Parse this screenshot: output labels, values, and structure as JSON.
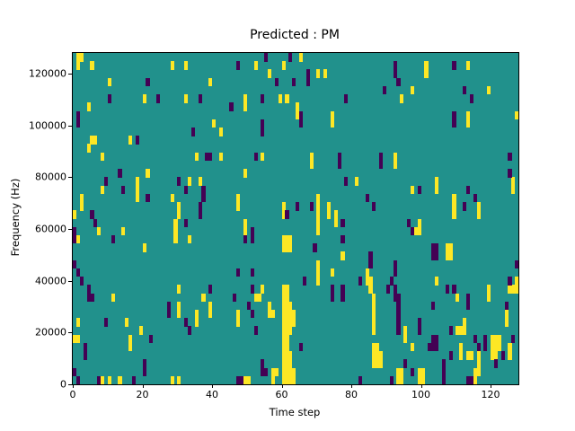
{
  "chart_data": {
    "type": "heatmap",
    "title": "Predicted : PM",
    "xlabel": "Time step",
    "ylabel": "Frequency (Hz)",
    "xlim": [
      0,
      128
    ],
    "ylim": [
      0,
      128000
    ],
    "x_ticks": [
      0,
      20,
      40,
      60,
      80,
      100,
      120
    ],
    "y_ticks": [
      0,
      20000,
      40000,
      60000,
      80000,
      100000,
      120000
    ],
    "grid": {
      "cols": 128,
      "rows": 40,
      "hz_per_row": 3200,
      "row_origin": "top",
      "gridlines": false
    },
    "legend": null,
    "colormap": "viridis",
    "colors": {
      "background_mid": "#21918c",
      "high": "#fde725",
      "low": "#440154",
      "figure_bg": "#ffffff",
      "axis": "#000000"
    },
    "cells_high": [
      [
        1,
        0
      ],
      [
        2,
        0
      ],
      [
        1,
        1
      ],
      [
        5,
        1
      ],
      [
        28,
        1
      ],
      [
        32,
        1
      ],
      [
        52,
        1
      ],
      [
        60,
        1
      ],
      [
        56,
        2
      ],
      [
        10,
        3
      ],
      [
        39,
        3
      ],
      [
        20,
        5
      ],
      [
        32,
        5
      ],
      [
        49,
        5
      ],
      [
        59,
        5
      ],
      [
        61,
        5
      ],
      [
        4,
        6
      ],
      [
        49,
        6
      ],
      [
        40,
        8
      ],
      [
        42,
        9
      ],
      [
        5,
        10
      ],
      [
        6,
        10
      ],
      [
        16,
        10
      ],
      [
        4,
        11
      ],
      [
        8,
        12
      ],
      [
        35,
        12
      ],
      [
        42,
        12
      ],
      [
        54,
        12
      ],
      [
        65,
        0
      ],
      [
        70,
        2
      ],
      [
        72,
        2
      ],
      [
        101,
        1
      ],
      [
        101,
        2
      ],
      [
        113,
        1
      ],
      [
        97,
        4
      ],
      [
        119,
        4
      ],
      [
        94,
        5
      ],
      [
        64,
        6
      ],
      [
        64,
        7
      ],
      [
        74,
        7
      ],
      [
        74,
        8
      ],
      [
        113,
        7
      ],
      [
        113,
        8
      ],
      [
        127,
        7
      ],
      [
        68,
        12
      ],
      [
        68,
        13
      ],
      [
        92,
        12
      ],
      [
        92,
        13
      ],
      [
        21,
        14
      ],
      [
        49,
        14
      ],
      [
        18,
        15
      ],
      [
        33,
        15
      ],
      [
        36,
        15
      ],
      [
        8,
        16
      ],
      [
        18,
        16
      ],
      [
        2,
        17
      ],
      [
        18,
        17
      ],
      [
        28,
        17
      ],
      [
        47,
        17
      ],
      [
        2,
        18
      ],
      [
        30,
        18
      ],
      [
        47,
        18
      ],
      [
        30,
        19
      ],
      [
        0,
        19
      ],
      [
        60,
        18
      ],
      [
        60,
        19
      ],
      [
        49,
        20
      ],
      [
        29,
        20
      ],
      [
        7,
        21
      ],
      [
        14,
        21
      ],
      [
        29,
        21
      ],
      [
        49,
        21
      ],
      [
        1,
        22
      ],
      [
        29,
        22
      ],
      [
        33,
        22
      ],
      [
        60,
        22
      ],
      [
        61,
        22
      ],
      [
        62,
        22
      ],
      [
        60,
        23
      ],
      [
        61,
        23
      ],
      [
        62,
        23
      ],
      [
        20,
        23
      ],
      [
        81,
        15
      ],
      [
        104,
        15
      ],
      [
        126,
        15
      ],
      [
        97,
        16
      ],
      [
        104,
        16
      ],
      [
        126,
        16
      ],
      [
        70,
        17
      ],
      [
        109,
        17
      ],
      [
        70,
        18
      ],
      [
        73,
        18
      ],
      [
        109,
        18
      ],
      [
        116,
        18
      ],
      [
        70,
        19
      ],
      [
        73,
        19
      ],
      [
        75,
        19
      ],
      [
        109,
        19
      ],
      [
        116,
        19
      ],
      [
        70,
        20
      ],
      [
        75,
        20
      ],
      [
        99,
        20
      ],
      [
        70,
        21
      ],
      [
        98,
        21
      ],
      [
        99,
        21
      ],
      [
        107,
        23
      ],
      [
        108,
        23
      ],
      [
        107,
        24
      ],
      [
        108,
        24
      ],
      [
        77,
        24
      ],
      [
        70,
        25
      ],
      [
        70,
        26
      ],
      [
        74,
        26
      ],
      [
        84,
        26
      ],
      [
        11,
        29
      ],
      [
        30,
        28
      ],
      [
        54,
        28
      ],
      [
        37,
        29
      ],
      [
        52,
        29
      ],
      [
        53,
        29
      ],
      [
        30,
        30
      ],
      [
        39,
        30
      ],
      [
        56,
        30
      ],
      [
        30,
        31
      ],
      [
        35,
        31
      ],
      [
        39,
        31
      ],
      [
        47,
        31
      ],
      [
        56,
        31
      ],
      [
        57,
        31
      ],
      [
        1,
        32
      ],
      [
        15,
        32
      ],
      [
        35,
        32
      ],
      [
        47,
        32
      ],
      [
        19,
        33
      ],
      [
        0,
        34
      ],
      [
        1,
        34
      ],
      [
        16,
        34
      ],
      [
        16,
        35
      ],
      [
        8,
        39
      ],
      [
        10,
        39
      ],
      [
        13,
        39
      ],
      [
        28,
        39
      ],
      [
        30,
        39
      ],
      [
        49,
        39
      ],
      [
        50,
        39
      ],
      [
        57,
        38
      ],
      [
        57,
        39
      ],
      [
        58,
        38
      ],
      [
        60,
        28
      ],
      [
        61,
        28
      ],
      [
        60,
        29
      ],
      [
        61,
        29
      ],
      [
        60,
        30
      ],
      [
        61,
        30
      ],
      [
        62,
        30
      ],
      [
        60,
        31
      ],
      [
        61,
        31
      ],
      [
        62,
        31
      ],
      [
        63,
        31
      ],
      [
        60,
        32
      ],
      [
        61,
        32
      ],
      [
        62,
        32
      ],
      [
        63,
        32
      ],
      [
        60,
        33
      ],
      [
        61,
        33
      ],
      [
        62,
        33
      ],
      [
        60,
        34
      ],
      [
        61,
        34
      ],
      [
        60,
        35
      ],
      [
        61,
        35
      ],
      [
        60,
        36
      ],
      [
        61,
        36
      ],
      [
        62,
        36
      ],
      [
        60,
        37
      ],
      [
        61,
        37
      ],
      [
        62,
        37
      ],
      [
        60,
        38
      ],
      [
        61,
        38
      ],
      [
        62,
        38
      ],
      [
        63,
        38
      ],
      [
        60,
        39
      ],
      [
        61,
        39
      ],
      [
        62,
        39
      ],
      [
        63,
        39
      ],
      [
        70,
        27
      ],
      [
        84,
        27
      ],
      [
        85,
        27
      ],
      [
        104,
        27
      ],
      [
        127,
        27
      ],
      [
        85,
        28
      ],
      [
        119,
        28
      ],
      [
        125,
        28
      ],
      [
        126,
        28
      ],
      [
        127,
        28
      ],
      [
        86,
        29
      ],
      [
        110,
        29
      ],
      [
        119,
        29
      ],
      [
        86,
        30
      ],
      [
        86,
        31
      ],
      [
        124,
        31
      ],
      [
        86,
        32
      ],
      [
        112,
        32
      ],
      [
        124,
        32
      ],
      [
        86,
        33
      ],
      [
        95,
        33
      ],
      [
        110,
        33
      ],
      [
        111,
        33
      ],
      [
        112,
        33
      ],
      [
        95,
        34
      ],
      [
        120,
        34
      ],
      [
        121,
        34
      ],
      [
        122,
        34
      ],
      [
        86,
        35
      ],
      [
        87,
        35
      ],
      [
        97,
        35
      ],
      [
        111,
        35
      ],
      [
        120,
        35
      ],
      [
        121,
        35
      ],
      [
        122,
        35
      ],
      [
        125,
        35
      ],
      [
        86,
        36
      ],
      [
        87,
        36
      ],
      [
        88,
        36
      ],
      [
        111,
        36
      ],
      [
        113,
        36
      ],
      [
        114,
        36
      ],
      [
        116,
        36
      ],
      [
        120,
        36
      ],
      [
        121,
        36
      ],
      [
        125,
        36
      ],
      [
        86,
        37
      ],
      [
        87,
        37
      ],
      [
        88,
        37
      ],
      [
        116,
        37
      ],
      [
        93,
        38
      ],
      [
        94,
        38
      ],
      [
        99,
        38
      ],
      [
        100,
        38
      ],
      [
        115,
        38
      ],
      [
        116,
        38
      ],
      [
        93,
        39
      ],
      [
        94,
        39
      ],
      [
        99,
        39
      ],
      [
        100,
        39
      ],
      [
        115,
        39
      ]
    ],
    "cells_low": [
      [
        55,
        0
      ],
      [
        62,
        0
      ],
      [
        47,
        1
      ],
      [
        21,
        3
      ],
      [
        58,
        3
      ],
      [
        63,
        3
      ],
      [
        10,
        5
      ],
      [
        24,
        5
      ],
      [
        36,
        5
      ],
      [
        54,
        5
      ],
      [
        45,
        6
      ],
      [
        1,
        7
      ],
      [
        1,
        8
      ],
      [
        54,
        8
      ],
      [
        54,
        9
      ],
      [
        34,
        9
      ],
      [
        18,
        10
      ],
      [
        38,
        12
      ],
      [
        39,
        12
      ],
      [
        52,
        12
      ],
      [
        92,
        1
      ],
      [
        92,
        2
      ],
      [
        109,
        1
      ],
      [
        67,
        2
      ],
      [
        67,
        3
      ],
      [
        93,
        3
      ],
      [
        89,
        4
      ],
      [
        112,
        4
      ],
      [
        78,
        5
      ],
      [
        114,
        5
      ],
      [
        65,
        7
      ],
      [
        65,
        8
      ],
      [
        109,
        7
      ],
      [
        109,
        8
      ],
      [
        76,
        12
      ],
      [
        76,
        13
      ],
      [
        88,
        12
      ],
      [
        88,
        13
      ],
      [
        125,
        12
      ],
      [
        13,
        14
      ],
      [
        9,
        15
      ],
      [
        30,
        15
      ],
      [
        14,
        16
      ],
      [
        32,
        16
      ],
      [
        37,
        16
      ],
      [
        21,
        17
      ],
      [
        37,
        17
      ],
      [
        36,
        18
      ],
      [
        5,
        19
      ],
      [
        36,
        19
      ],
      [
        61,
        19
      ],
      [
        6,
        20
      ],
      [
        32,
        20
      ],
      [
        0,
        21
      ],
      [
        51,
        21
      ],
      [
        0,
        22
      ],
      [
        11,
        22
      ],
      [
        49,
        22
      ],
      [
        51,
        22
      ],
      [
        0,
        25
      ],
      [
        1,
        26
      ],
      [
        47,
        26
      ],
      [
        51,
        26
      ],
      [
        125,
        14
      ],
      [
        78,
        15
      ],
      [
        99,
        16
      ],
      [
        113,
        16
      ],
      [
        84,
        17
      ],
      [
        115,
        17
      ],
      [
        64,
        18
      ],
      [
        68,
        18
      ],
      [
        86,
        18
      ],
      [
        112,
        18
      ],
      [
        77,
        20
      ],
      [
        96,
        20
      ],
      [
        97,
        21
      ],
      [
        77,
        22
      ],
      [
        69,
        23
      ],
      [
        103,
        23
      ],
      [
        104,
        23
      ],
      [
        103,
        24
      ],
      [
        104,
        24
      ],
      [
        85,
        24
      ],
      [
        85,
        25
      ],
      [
        92,
        25
      ],
      [
        92,
        26
      ],
      [
        127,
        25
      ],
      [
        2,
        27
      ],
      [
        4,
        28
      ],
      [
        39,
        28
      ],
      [
        51,
        28
      ],
      [
        4,
        29
      ],
      [
        5,
        29
      ],
      [
        46,
        29
      ],
      [
        27,
        30
      ],
      [
        50,
        30
      ],
      [
        27,
        31
      ],
      [
        51,
        31
      ],
      [
        9,
        32
      ],
      [
        32,
        32
      ],
      [
        33,
        33
      ],
      [
        52,
        33
      ],
      [
        22,
        34
      ],
      [
        3,
        35
      ],
      [
        3,
        36
      ],
      [
        20,
        37
      ],
      [
        54,
        37
      ],
      [
        0,
        38
      ],
      [
        20,
        38
      ],
      [
        54,
        38
      ],
      [
        55,
        38
      ],
      [
        1,
        39
      ],
      [
        7,
        39
      ],
      [
        17,
        39
      ],
      [
        47,
        39
      ],
      [
        48,
        39
      ],
      [
        66,
        27
      ],
      [
        82,
        27
      ],
      [
        91,
        27
      ],
      [
        125,
        27
      ],
      [
        74,
        28
      ],
      [
        77,
        28
      ],
      [
        90,
        28
      ],
      [
        92,
        28
      ],
      [
        107,
        28
      ],
      [
        109,
        28
      ],
      [
        74,
        29
      ],
      [
        77,
        29
      ],
      [
        92,
        29
      ],
      [
        93,
        29
      ],
      [
        113,
        29
      ],
      [
        93,
        30
      ],
      [
        103,
        30
      ],
      [
        113,
        30
      ],
      [
        124,
        30
      ],
      [
        93,
        31
      ],
      [
        93,
        32
      ],
      [
        99,
        32
      ],
      [
        93,
        33
      ],
      [
        99,
        33
      ],
      [
        108,
        33
      ],
      [
        103,
        34
      ],
      [
        104,
        34
      ],
      [
        115,
        34
      ],
      [
        118,
        34
      ],
      [
        126,
        34
      ],
      [
        65,
        35
      ],
      [
        102,
        35
      ],
      [
        103,
        35
      ],
      [
        104,
        35
      ],
      [
        116,
        35
      ],
      [
        118,
        35
      ],
      [
        108,
        36
      ],
      [
        123,
        36
      ],
      [
        95,
        37
      ],
      [
        106,
        37
      ],
      [
        121,
        37
      ],
      [
        97,
        38
      ],
      [
        106,
        38
      ],
      [
        82,
        39
      ],
      [
        91,
        39
      ],
      [
        106,
        39
      ],
      [
        113,
        39
      ],
      [
        114,
        39
      ]
    ]
  }
}
